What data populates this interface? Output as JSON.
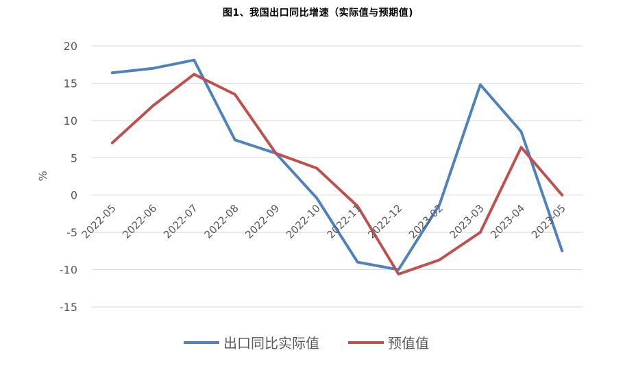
{
  "chart_data": {
    "type": "line",
    "title": "图1、我国出口同比增速（实际值与预期值)",
    "ylabel": "%",
    "xlabel": "",
    "ylim": [
      -15,
      20
    ],
    "yticks": [
      20,
      15,
      10,
      5,
      0,
      -5,
      -10,
      -15
    ],
    "grid": "horizontal",
    "legend": "bottom",
    "categories": [
      "2022-05",
      "2022-06",
      "2022-07",
      "2022-08",
      "2022-09",
      "2022-10",
      "2022-11",
      "2022-12",
      "2023-02",
      "2023-03",
      "2023-04",
      "2023-05"
    ],
    "series": [
      {
        "name": "出口同比实际值",
        "color": "#4f81bd",
        "values": [
          16.4,
          17.0,
          18.1,
          7.4,
          5.6,
          -0.4,
          -9.0,
          -10.0,
          -1.3,
          14.8,
          8.5,
          -7.5
        ]
      },
      {
        "name": "预值值",
        "color": "#c0504d",
        "values": [
          7.0,
          12.0,
          16.2,
          13.5,
          5.6,
          3.6,
          -1.5,
          -10.6,
          -8.7,
          -5.0,
          6.4,
          0.0
        ]
      }
    ]
  }
}
